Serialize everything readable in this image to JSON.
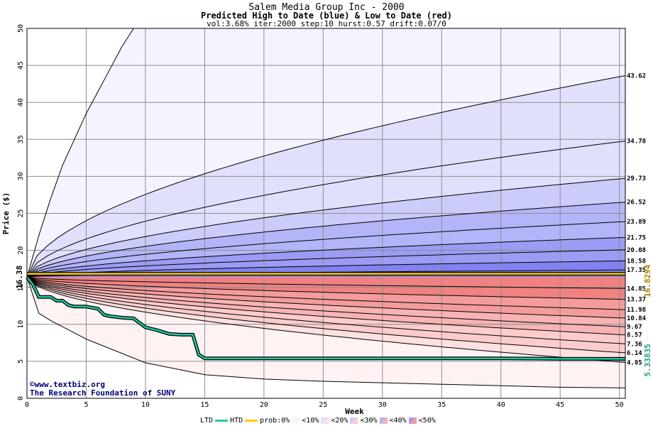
{
  "header": {
    "title": "Salem Media Group Inc - 2000",
    "subtitle": "Predicted High to Date (blue) &  Low to Date (red)",
    "params": "vol:3.68% iter:2000 step:10 hurst:0.57 drift:0.07/0"
  },
  "credits": {
    "line1": "©www.textbiz.org",
    "line2": "The Research Foundation of SUNY"
  },
  "legend": {
    "ltd": "LTD",
    "htd": "HTD",
    "prob": "prob:0%",
    "b1": "<10%",
    "b2": "<20%",
    "b3": "<30%",
    "b4": "<40%",
    "b5": "<50%"
  },
  "colors": {
    "ltd_line": "#20c8a0",
    "htd_line": "#ffcc00",
    "blue_bands": [
      "#f4f4ff",
      "#e0e0fc",
      "#ccccfa",
      "#b4b4f8",
      "#9c9cf4",
      "#8282f0"
    ],
    "red_bands": [
      "#fff2f2",
      "#fde0e0",
      "#fccccc",
      "#f8b4b4",
      "#f49c9c",
      "#f08282"
    ]
  },
  "chart_data": {
    "type": "line",
    "title": "Salem Media Group Inc - 2000",
    "subtitle": "Predicted High to Date (blue) &  Low to Date (red)",
    "xlabel": "Week",
    "ylabel": "Price ($)",
    "xlim": [
      0,
      50.5
    ],
    "ylim": [
      0,
      50
    ],
    "x_ticks": [
      0,
      5,
      10,
      15,
      20,
      25,
      30,
      35,
      40,
      45,
      50
    ],
    "y_ticks": [
      0,
      5,
      10,
      15,
      20,
      25,
      30,
      35,
      40,
      45,
      50
    ],
    "grid": true,
    "start_price": 16.38,
    "start_label": "16.38",
    "current_high": 16.8294,
    "current_high_label": "16.8294",
    "current_low": 5.33835,
    "current_low_label": "5.33835",
    "high_final_values": [
      43.62,
      34.78,
      29.73,
      26.52,
      23.89,
      21.75,
      20.08,
      18.58,
      17.35
    ],
    "high_final_labels": [
      "43.62",
      "34.78",
      "29.73",
      "26.52",
      "23.89",
      "21.75",
      "20.08",
      "18.58",
      "17.35"
    ],
    "low_final_values": [
      14.85,
      13.37,
      11.98,
      10.84,
      9.67,
      8.57,
      7.36,
      6.14,
      4.85
    ],
    "low_final_labels": [
      "14.85",
      "13.37",
      "11.98",
      "10.84",
      "9.67",
      "8.57",
      "7.36",
      "6.14",
      "4.85"
    ],
    "high_outer_envelope": {
      "x": [
        0,
        1,
        2,
        3,
        4,
        5,
        6,
        7,
        8,
        9,
        9.5,
        10
      ],
      "y": [
        16.38,
        22,
        27,
        31.5,
        35,
        38.5,
        41.5,
        44.5,
        47.5,
        50,
        50,
        50
      ]
    },
    "low_outer_envelope": {
      "x": [
        0,
        1,
        2,
        5,
        10,
        15,
        20,
        25,
        30,
        35,
        40,
        45,
        50.5
      ],
      "y": [
        16.38,
        11.5,
        10.5,
        8,
        4.8,
        3.2,
        2.6,
        2.3,
        2.1,
        1.9,
        1.7,
        1.5,
        1.4
      ]
    },
    "high_to_date": {
      "x": [
        0,
        50.5
      ],
      "y": [
        16.8294,
        16.8294
      ]
    },
    "low_to_date": {
      "x": [
        0,
        0.5,
        1,
        1.5,
        2,
        2.5,
        3,
        3.5,
        4,
        5,
        6,
        6.5,
        7,
        8,
        9,
        9.5,
        10,
        11,
        12,
        13,
        14,
        14.5,
        15,
        20,
        25,
        30,
        35,
        40,
        45,
        50.5
      ],
      "y": [
        16.38,
        15.4,
        13.7,
        13.7,
        13.7,
        13.2,
        13.2,
        12.6,
        12.4,
        12.4,
        12.1,
        11.3,
        11.1,
        10.9,
        10.8,
        10.2,
        9.6,
        9.2,
        8.7,
        8.6,
        8.6,
        5.9,
        5.4,
        5.4,
        5.4,
        5.4,
        5.4,
        5.4,
        5.34,
        5.34
      ]
    }
  }
}
